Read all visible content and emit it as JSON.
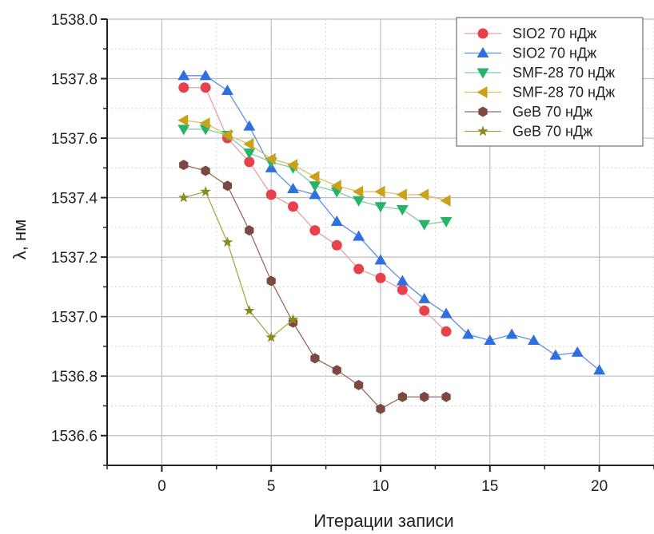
{
  "chart_data": {
    "type": "line",
    "title": "",
    "xlabel": "Итерации записи",
    "ylabel": "λ, нм",
    "xlim": [
      -2.5,
      22.5
    ],
    "ylim": [
      1536.5,
      1538.0
    ],
    "xticks": [
      0,
      5,
      10,
      15,
      20
    ],
    "yticks": [
      1536.6,
      1536.8,
      1537.0,
      1537.2,
      1537.4,
      1537.6,
      1537.8,
      1538.0
    ],
    "xtick_labels": [
      "0",
      "5",
      "10",
      "15",
      "20"
    ],
    "ytick_labels": [
      "1536.6",
      "1536.8",
      "1537.0",
      "1537.2",
      "1537.4",
      "1537.6",
      "1537.8",
      "1538.0"
    ],
    "grid": true,
    "legend_position": "top-right",
    "series": [
      {
        "name": "SIO2 70 нДж",
        "marker": "circle",
        "color": "#e8414b",
        "line_color": "#e8a0a4",
        "x": [
          1,
          2,
          3,
          4,
          5,
          6,
          7,
          8,
          9,
          10,
          11,
          12,
          13
        ],
        "y": [
          1537.77,
          1537.77,
          1537.6,
          1537.52,
          1537.41,
          1537.37,
          1537.29,
          1537.24,
          1537.16,
          1537.13,
          1537.09,
          1537.02,
          1536.95
        ]
      },
      {
        "name": "SIO2 70 нДж",
        "marker": "triangle-up",
        "color": "#2f6fe0",
        "line_color": "#5a8fe8",
        "x": [
          1,
          2,
          3,
          4,
          5,
          6,
          7,
          8,
          9,
          10,
          11,
          12,
          13,
          14,
          15,
          16,
          17,
          18,
          19,
          20
        ],
        "y": [
          1537.81,
          1537.81,
          1537.76,
          1537.64,
          1537.5,
          1537.43,
          1537.41,
          1537.32,
          1537.27,
          1537.19,
          1537.12,
          1537.06,
          1537.01,
          1536.94,
          1536.92,
          1536.94,
          1536.92,
          1536.87,
          1536.88,
          1536.82
        ]
      },
      {
        "name": "SMF-28 70 нДж",
        "marker": "triangle-down",
        "color": "#27b36a",
        "line_color": "#7fcfa2",
        "x": [
          1,
          2,
          3,
          4,
          5,
          6,
          7,
          8,
          9,
          10,
          11,
          12,
          13
        ],
        "y": [
          1537.63,
          1537.63,
          1537.61,
          1537.55,
          1537.52,
          1537.5,
          1537.44,
          1537.42,
          1537.39,
          1537.37,
          1537.36,
          1537.31,
          1537.32
        ]
      },
      {
        "name": "SMF-28 70 нДж",
        "marker": "triangle-left",
        "color": "#c9a21a",
        "line_color": "#d9c060",
        "x": [
          1,
          2,
          3,
          4,
          5,
          6,
          7,
          8,
          9,
          10,
          11,
          12,
          13
        ],
        "y": [
          1537.66,
          1537.65,
          1537.61,
          1537.58,
          1537.53,
          1537.51,
          1537.47,
          1537.44,
          1537.42,
          1537.42,
          1537.41,
          1537.41,
          1537.39
        ]
      },
      {
        "name": "GeB 70 нДж",
        "marker": "hexagon",
        "color": "#7a4a40",
        "line_color": "#9a6a60",
        "x": [
          1,
          2,
          3,
          4,
          5,
          6,
          7,
          8,
          9,
          10,
          11,
          12,
          13
        ],
        "y": [
          1537.51,
          1537.49,
          1537.44,
          1537.29,
          1537.12,
          1536.98,
          1536.86,
          1536.82,
          1536.77,
          1536.69,
          1536.73,
          1536.73,
          1536.73
        ]
      },
      {
        "name": "GeB 70 нДж",
        "marker": "star",
        "color": "#8a8a1e",
        "line_color": "#a8a84a",
        "x": [
          1,
          2,
          3,
          4,
          5,
          6
        ],
        "y": [
          1537.4,
          1537.42,
          1537.25,
          1537.02,
          1536.93,
          1536.99
        ]
      }
    ]
  }
}
